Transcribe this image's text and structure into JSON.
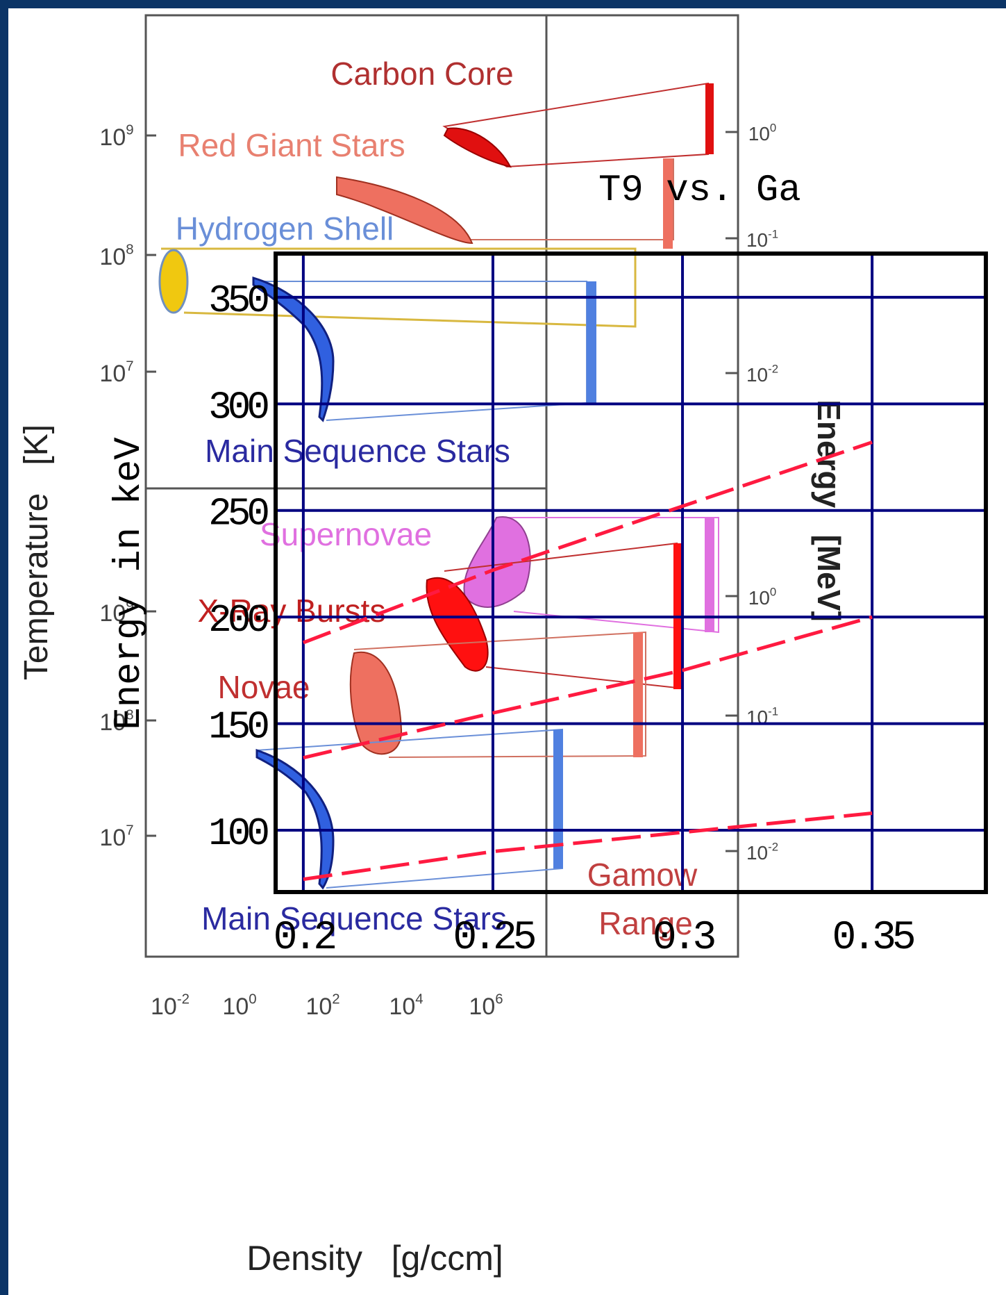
{
  "background_figure": {
    "y_axis_label": "Temperature   [K]",
    "x_axis_label": "Density   [g/ccm]",
    "right_axis_label": "Energy   [MeV]",
    "temperature_ticks": [
      {
        "base": "10",
        "exp": "9"
      },
      {
        "base": "10",
        "exp": "8"
      },
      {
        "base": "10",
        "exp": "7"
      },
      {
        "base": "10",
        "exp": "9"
      },
      {
        "base": "10",
        "exp": "8"
      },
      {
        "base": "10",
        "exp": "7"
      }
    ],
    "energy_ticks": [
      {
        "base": "10",
        "exp": "0"
      },
      {
        "base": "10",
        "exp": "-1"
      },
      {
        "base": "10",
        "exp": "-2"
      },
      {
        "base": "10",
        "exp": "0"
      },
      {
        "base": "10",
        "exp": "-1"
      },
      {
        "base": "10",
        "exp": "-2"
      }
    ],
    "density_ticks": [
      {
        "base": "10",
        "exp": "-2"
      },
      {
        "base": "10",
        "exp": "0"
      },
      {
        "base": "10",
        "exp": "2"
      },
      {
        "base": "10",
        "exp": "4"
      },
      {
        "base": "10",
        "exp": "6"
      }
    ],
    "regions": [
      "Carbon Core",
      "Red Giant Stars",
      "Hydrogen Shell",
      "Main Sequence Stars",
      "Supernovae",
      "X-Ray Bursts",
      "Novae",
      "Main Sequence Stars",
      "Gamow",
      "Range"
    ]
  },
  "chart_data": {
    "type": "line",
    "title": "T9 vs. Ga",
    "y_label": "Energy in keV",
    "x": [
      0.2,
      0.25,
      0.3,
      0.35
    ],
    "series": [
      {
        "color": "#ff1a40",
        "values": [
          188,
          222,
          252,
          282
        ]
      },
      {
        "color": "#ff1a40",
        "values": [
          134,
          155,
          175,
          200
        ]
      },
      {
        "color": "#ff1a40",
        "values": [
          77,
          90,
          99,
          108
        ]
      }
    ],
    "xlim": [
      0.1927,
      0.38
    ],
    "ylim": [
      71,
      370.5
    ],
    "xticks": [
      0.2,
      0.25,
      0.3,
      0.35
    ],
    "yticks": [
      100,
      150,
      200,
      250,
      300,
      350
    ],
    "grid": true,
    "grid_color": "#000080",
    "line_style": "dashed"
  }
}
